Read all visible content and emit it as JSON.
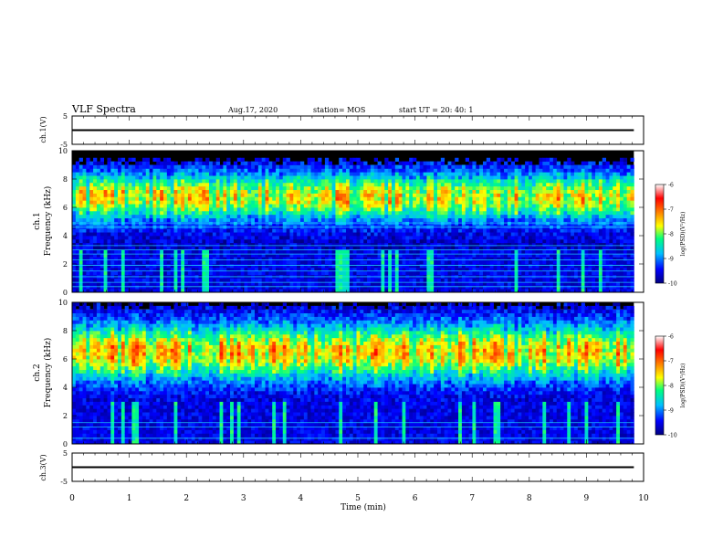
{
  "header": {
    "title": "VLF Spectra",
    "date": "Aug.17, 2020",
    "station": "station= MOS",
    "start": "start  UT =   20: 40: 1"
  },
  "colors": {
    "colormap": [
      "#00007f",
      "#0000ff",
      "#00bfff",
      "#00ff7f",
      "#ffff00",
      "#ff7f00",
      "#ff0000",
      "#ffffff"
    ],
    "line": "#000000"
  },
  "chart_data": [
    {
      "type": "line",
      "panel": "ch1-waveform",
      "ylabel": "ch.1(V)",
      "ylim": [
        -5,
        5
      ],
      "yticks": [
        "5",
        "-5"
      ],
      "x": [
        0,
        9.83
      ],
      "values": [
        0,
        0
      ]
    },
    {
      "type": "heatmap",
      "panel": "ch1-spectrogram",
      "ylabel": "ch.1\nFrequency (kHz)",
      "ylabel_lines": [
        "ch.1",
        "Frequency (kHz)"
      ],
      "ylim": [
        0,
        10
      ],
      "yticks": [
        "0",
        "2",
        "4",
        "6",
        "8",
        "10"
      ],
      "xlim": [
        0,
        9.83
      ],
      "upper_cutoff_khz": 9.0,
      "peak_band_khz": [
        5.5,
        8.0
      ],
      "peak_log_psd": -7,
      "lines_khz": [
        0.4,
        0.7,
        1.1,
        1.5,
        1.9,
        2.3,
        2.7,
        3.0,
        3.3,
        4.6,
        4.9
      ],
      "colorbar": {
        "label": "log(PSD)(V²/Hz)",
        "ticks": [
          "-6",
          "-7",
          "-8",
          "-9",
          "-10"
        ],
        "range": [
          -10,
          -6
        ]
      }
    },
    {
      "type": "heatmap",
      "panel": "ch2-spectrogram",
      "ylabel": "ch.2\nFrequency (kHz)",
      "ylabel_lines": [
        "ch.2",
        "Frequency (kHz)"
      ],
      "ylim": [
        0,
        10
      ],
      "yticks": [
        "0",
        "2",
        "4",
        "6",
        "8",
        "10"
      ],
      "xlim": [
        0,
        9.83
      ],
      "upper_cutoff_khz": 9.5,
      "peak_band_khz": [
        5.0,
        8.0
      ],
      "peak_log_psd": -6.8,
      "lines_khz": [
        0.4,
        1.2,
        1.5
      ],
      "colorbar": {
        "label": "log(PSD)(V²/Hz)",
        "ticks": [
          "-6",
          "-7",
          "-8",
          "-9",
          "-10"
        ],
        "range": [
          -10,
          -6
        ]
      }
    },
    {
      "type": "line",
      "panel": "ch3-waveform",
      "ylabel": "ch.3(V)",
      "ylim": [
        -5,
        5
      ],
      "yticks": [
        "5",
        "-5"
      ],
      "x": [
        0,
        9.83
      ],
      "values": [
        0,
        0
      ],
      "xlabel": "Time  (min)",
      "xlim": [
        0,
        10
      ],
      "xticks": [
        "0",
        "1",
        "2",
        "3",
        "4",
        "5",
        "6",
        "7",
        "8",
        "9",
        "10"
      ]
    }
  ]
}
